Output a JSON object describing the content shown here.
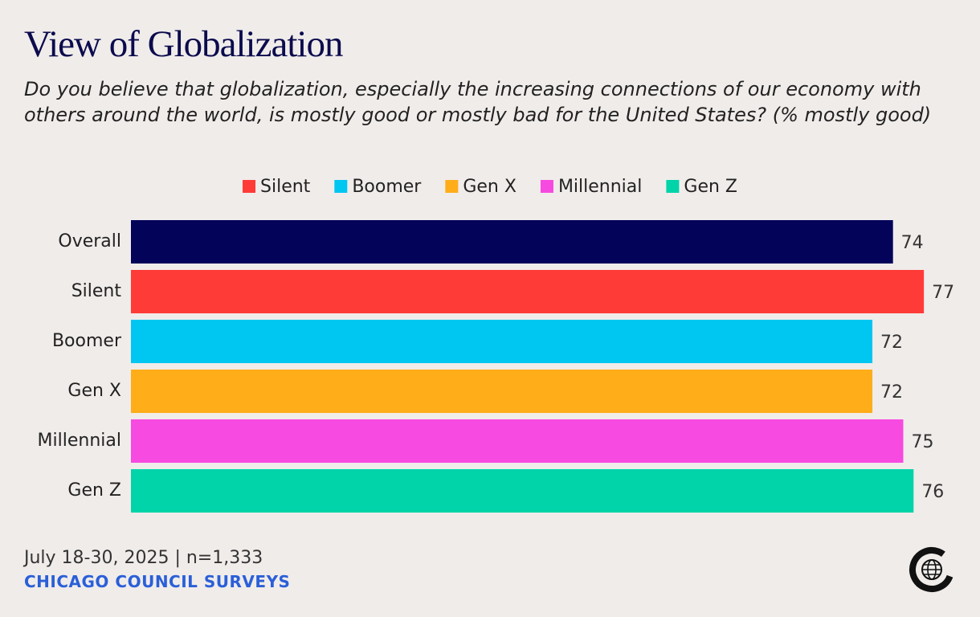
{
  "chart_data": {
    "type": "barh",
    "title": "View of Globalization",
    "subtitle": "Do you believe that globalization, especially the increasing connections of our economy with others around the world, is mostly good or mostly bad for the United States? (% mostly good)",
    "legend": [
      {
        "name": "Silent",
        "color": "#ff3b38"
      },
      {
        "name": "Boomer",
        "color": "#00c6f2"
      },
      {
        "name": "Gen X",
        "color": "#ffad19"
      },
      {
        "name": "Millennial",
        "color": "#f74ae0"
      },
      {
        "name": "Gen Z",
        "color": "#00d4a8"
      }
    ],
    "categories": [
      "Overall",
      "Silent",
      "Boomer",
      "Gen X",
      "Millennial",
      "Gen Z"
    ],
    "values": [
      74,
      77,
      72,
      72,
      75,
      76
    ],
    "colors": [
      "#03035a",
      "#ff3b38",
      "#00c6f2",
      "#ffad19",
      "#f74ae0",
      "#00d4a8"
    ],
    "footer": {
      "date": "July 18-30, 2025 | n=1,333",
      "source": "CHICAGO COUNCIL SURVEYS"
    }
  }
}
